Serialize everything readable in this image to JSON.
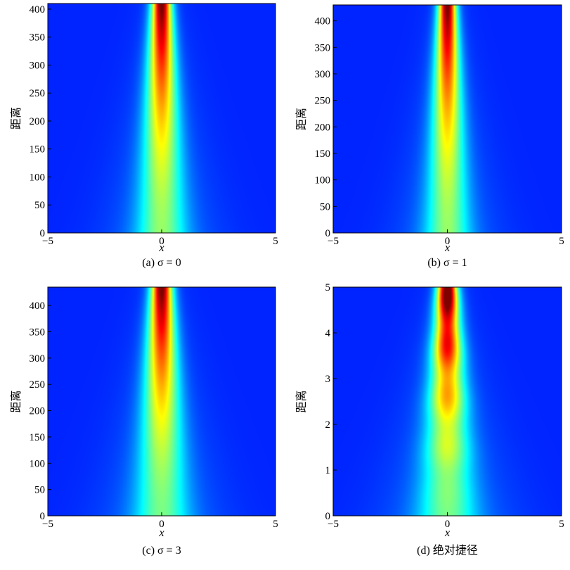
{
  "chart_data": [
    {
      "type": "heatmap",
      "caption": "(a) σ = 0",
      "xlabel": "x",
      "ylabel": "距离",
      "xlim": [
        -5,
        5
      ],
      "ylim": [
        0,
        410
      ],
      "xticks": [
        "−5",
        "0",
        "5"
      ],
      "xtick_values": [
        -5,
        0,
        5
      ],
      "yticks": [
        "0",
        "50",
        "100",
        "150",
        "200",
        "250",
        "300",
        "350",
        "400"
      ],
      "ytick_values": [
        0,
        50,
        100,
        150,
        200,
        250,
        300,
        350,
        400
      ],
      "colormap": "jet",
      "beam": {
        "center_x": 0,
        "width_start": 1.05,
        "width_end": 0.42,
        "intensity_start": 0.45,
        "intensity_end": 1.0,
        "ripple": 0
      }
    },
    {
      "type": "heatmap",
      "caption": "(b) σ = 1",
      "xlabel": "x",
      "ylabel": "距离",
      "xlim": [
        -5,
        5
      ],
      "ylim": [
        0,
        430
      ],
      "xticks": [
        "−5",
        "0",
        "5"
      ],
      "xtick_values": [
        -5,
        0,
        5
      ],
      "yticks": [
        "0",
        "50",
        "100",
        "150",
        "200",
        "250",
        "300",
        "350",
        "400"
      ],
      "ytick_values": [
        0,
        50,
        100,
        150,
        200,
        250,
        300,
        350,
        400
      ],
      "colormap": "jet",
      "beam": {
        "center_x": 0,
        "width_start": 0.95,
        "width_end": 0.38,
        "intensity_start": 0.45,
        "intensity_end": 1.0,
        "ripple": 0
      }
    },
    {
      "type": "heatmap",
      "caption": "(c) σ = 3",
      "xlabel": "x",
      "ylabel": "距离",
      "xlim": [
        -5,
        5
      ],
      "ylim": [
        0,
        435
      ],
      "xticks": [
        "−5",
        "0",
        "5"
      ],
      "xtick_values": [
        -5,
        0,
        5
      ],
      "yticks": [
        "0",
        "50",
        "100",
        "150",
        "200",
        "250",
        "300",
        "350",
        "400"
      ],
      "ytick_values": [
        0,
        50,
        100,
        150,
        200,
        250,
        300,
        350,
        400
      ],
      "colormap": "jet",
      "beam": {
        "center_x": 0,
        "width_start": 1.15,
        "width_end": 0.45,
        "intensity_start": 0.42,
        "intensity_end": 1.0,
        "ripple": 0
      }
    },
    {
      "type": "heatmap",
      "caption": "(d) 绝对捷径",
      "xlabel": "x",
      "ylabel": "距离",
      "xlim": [
        -5,
        5
      ],
      "ylim": [
        0,
        5
      ],
      "xticks": [
        "−5",
        "0",
        "5"
      ],
      "xtick_values": [
        -5,
        0,
        5
      ],
      "yticks": [
        "0",
        "1",
        "2",
        "3",
        "4",
        "5"
      ],
      "ytick_values": [
        0,
        1,
        2,
        3,
        4,
        5
      ],
      "colormap": "jet",
      "beam": {
        "center_x": 0,
        "width_start": 1.25,
        "width_end": 0.42,
        "intensity_start": 0.42,
        "intensity_end": 1.05,
        "ripple": 1
      }
    }
  ]
}
